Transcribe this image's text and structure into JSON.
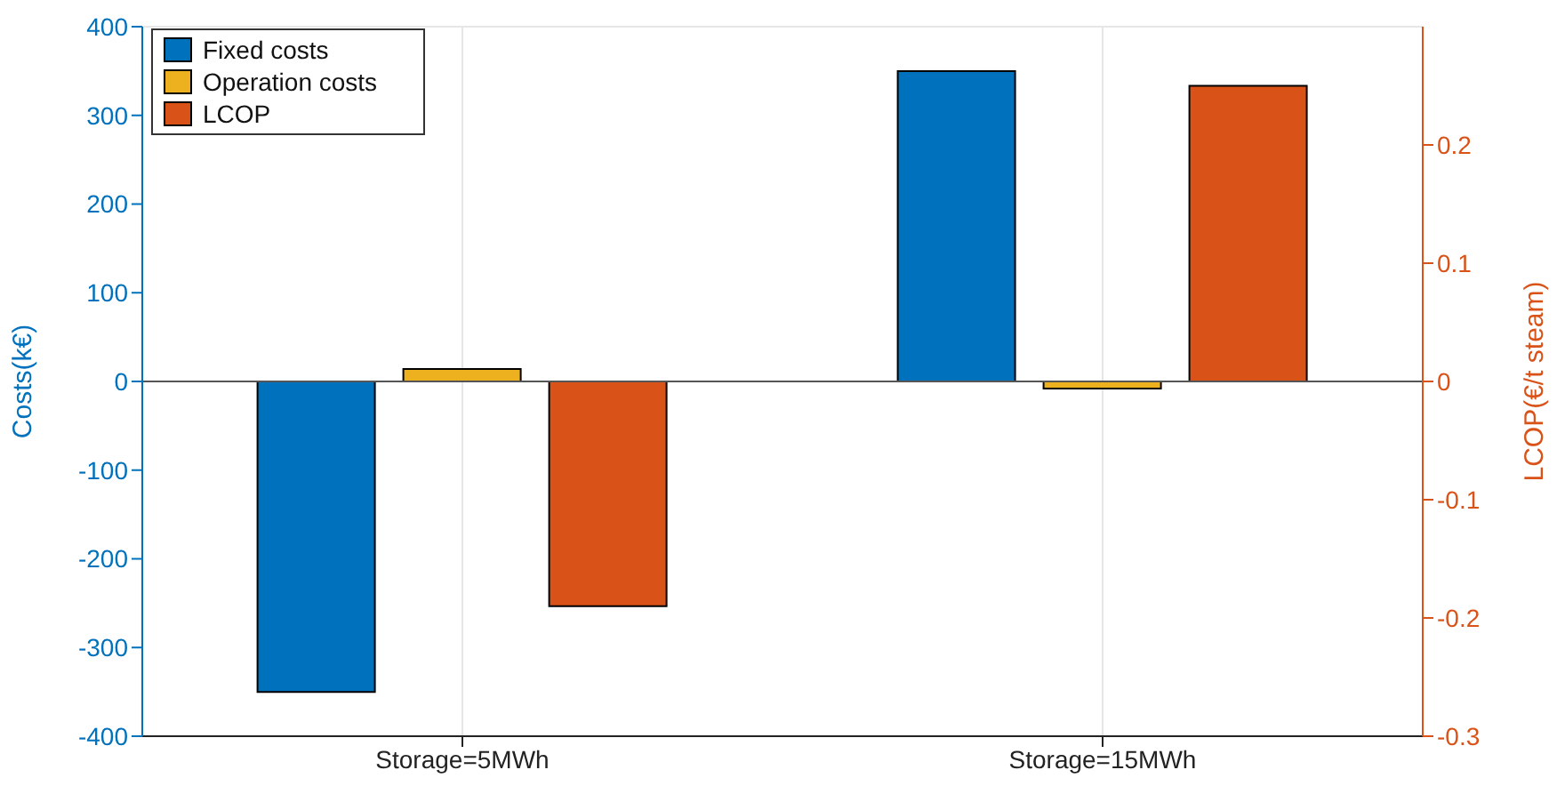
{
  "chart_data": {
    "type": "bar",
    "categories": [
      "Storage=5MWh",
      "Storage=15MWh"
    ],
    "series": [
      {
        "name": "Fixed costs",
        "color": "#0072bd",
        "values": [
          -350,
          350
        ]
      },
      {
        "name": "Operation costs",
        "color": "#edb120",
        "values": [
          14,
          -8
        ]
      },
      {
        "name": "LCOP",
        "color": "#d95319",
        "values": [
          -0.19,
          0.25
        ],
        "axis": "y2"
      }
    ],
    "ylabel": "Costs(k€)",
    "y2label": "LCOP(€/t steam)",
    "ylim": [
      -400,
      400
    ],
    "yticks": [
      -400,
      -300,
      -200,
      -100,
      0,
      100,
      200,
      300,
      400
    ],
    "y2lim": [
      -0.3,
      0.3
    ],
    "y2ticks": [
      -0.3,
      -0.2,
      -0.1,
      0,
      0.1,
      0.2
    ],
    "grid": true,
    "legend": "top left"
  }
}
